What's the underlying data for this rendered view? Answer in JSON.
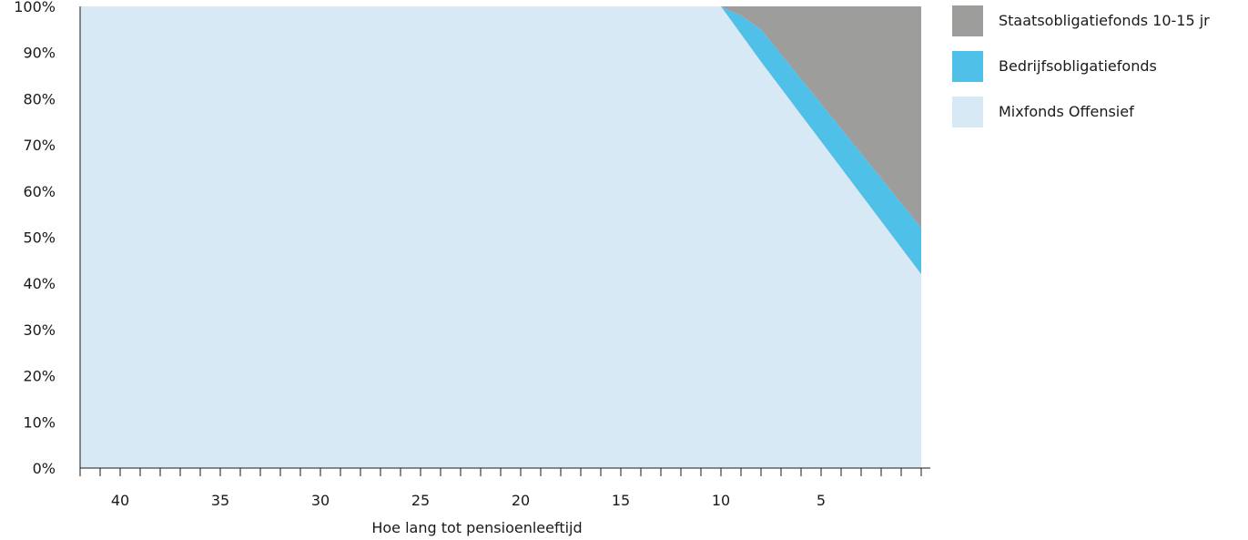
{
  "chart_data": {
    "type": "area",
    "stacked": true,
    "title": "",
    "xlabel": "Hoe lang tot pensioenleeftijd",
    "ylabel": "",
    "x_reversed": true,
    "xlim": [
      42,
      0
    ],
    "ylim": [
      0,
      100
    ],
    "x_tick_labels": [
      "40",
      "35",
      "30",
      "25",
      "20",
      "15",
      "10",
      "5"
    ],
    "x_tick_values": [
      40,
      35,
      30,
      25,
      20,
      15,
      10,
      5
    ],
    "y_ticks": [
      0,
      10,
      20,
      30,
      40,
      50,
      60,
      70,
      80,
      90,
      100
    ],
    "y_tick_labels": [
      "0%",
      "10%",
      "20%",
      "30%",
      "40%",
      "50%",
      "60%",
      "70%",
      "80%",
      "90%",
      "100%"
    ],
    "grid": false,
    "legend_position": "right",
    "x": [
      42,
      10,
      9,
      8,
      0
    ],
    "series": [
      {
        "name": "Mixfonds Offensief",
        "color": "#d6e9f5",
        "values": [
          100,
          100,
          94,
          88,
          42
        ]
      },
      {
        "name": "Bedrijfsobligatiefonds",
        "color": "#4fc0e8",
        "values": [
          0,
          0,
          4,
          7,
          10
        ]
      },
      {
        "name": "Staatsobligatiefonds 10-15 jr",
        "color": "#9d9d9c",
        "values": [
          0,
          0,
          2,
          5,
          48
        ]
      }
    ]
  },
  "legend": {
    "items": [
      {
        "label": "Staatsobligatiefonds 10-15 jr",
        "color": "#9d9d9c"
      },
      {
        "label": "Bedrijfsobligatiefonds",
        "color": "#4fc0e8"
      },
      {
        "label": "Mixfonds Offensief",
        "color": "#d6e9f5"
      }
    ]
  }
}
